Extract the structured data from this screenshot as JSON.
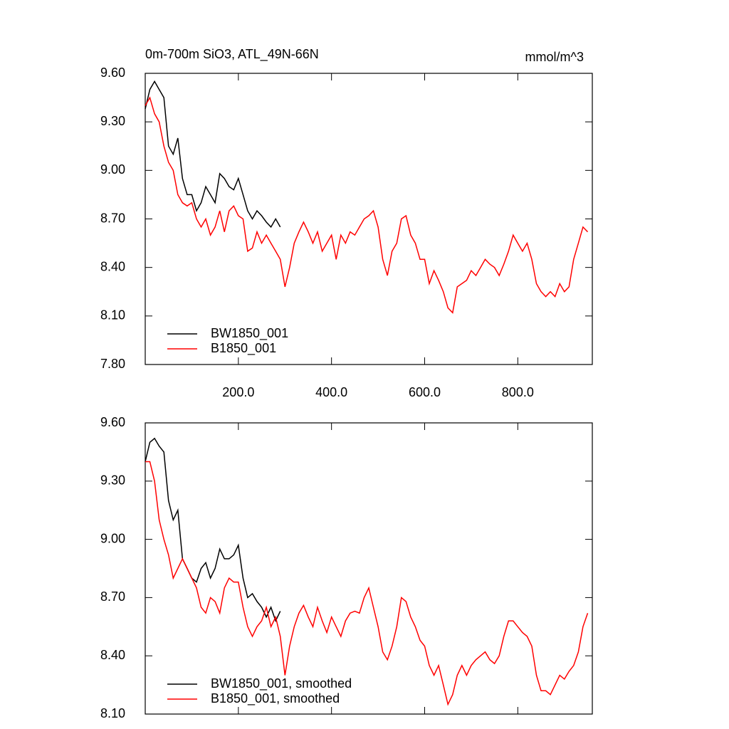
{
  "chart_data": [
    {
      "type": "line",
      "title": "0m-700m SiO3, ATL_49N-66N",
      "units": "mmol/m^3",
      "xlim": [
        0,
        960
      ],
      "ylim": [
        7.8,
        9.6
      ],
      "xticks": [
        {
          "value": 200,
          "label": "200.0"
        },
        {
          "value": 400,
          "label": "400.0"
        },
        {
          "value": 600,
          "label": "600.0"
        },
        {
          "value": 800,
          "label": "800.0"
        }
      ],
      "yticks": [
        {
          "value": 7.8,
          "label": "7.80"
        },
        {
          "value": 8.1,
          "label": "8.10"
        },
        {
          "value": 8.4,
          "label": "8.40"
        },
        {
          "value": 8.7,
          "label": "8.70"
        },
        {
          "value": 9.0,
          "label": "9.00"
        },
        {
          "value": 9.3,
          "label": "9.30"
        },
        {
          "value": 9.6,
          "label": "9.60"
        }
      ],
      "series": [
        {
          "name": "BW1850_001",
          "color": "#000000",
          "x": [
            0,
            10,
            20,
            30,
            40,
            50,
            60,
            70,
            80,
            90,
            100,
            110,
            120,
            130,
            140,
            150,
            160,
            170,
            180,
            190,
            200,
            210,
            220,
            230,
            240,
            250,
            260,
            270,
            280,
            290
          ],
          "values": [
            9.38,
            9.5,
            9.55,
            9.5,
            9.45,
            9.15,
            9.1,
            9.2,
            8.95,
            8.85,
            8.85,
            8.75,
            8.8,
            8.9,
            8.85,
            8.8,
            8.98,
            8.95,
            8.9,
            8.88,
            8.95,
            8.85,
            8.75,
            8.7,
            8.75,
            8.72,
            8.68,
            8.65,
            8.7,
            8.65
          ]
        },
        {
          "name": "B1850_001",
          "color": "#ff0000",
          "x": [
            0,
            10,
            20,
            30,
            40,
            50,
            60,
            70,
            80,
            90,
            100,
            110,
            120,
            130,
            140,
            150,
            160,
            170,
            180,
            190,
            200,
            210,
            220,
            230,
            240,
            250,
            260,
            270,
            280,
            290,
            300,
            310,
            320,
            330,
            340,
            350,
            360,
            370,
            380,
            390,
            400,
            410,
            420,
            430,
            440,
            450,
            460,
            470,
            480,
            490,
            500,
            510,
            520,
            530,
            540,
            550,
            560,
            570,
            580,
            590,
            600,
            610,
            620,
            630,
            640,
            650,
            660,
            670,
            680,
            690,
            700,
            710,
            720,
            730,
            740,
            750,
            760,
            770,
            780,
            790,
            800,
            810,
            820,
            830,
            840,
            850,
            860,
            870,
            880,
            890,
            900,
            910,
            920,
            930,
            940,
            950
          ],
          "values": [
            9.4,
            9.45,
            9.35,
            9.3,
            9.15,
            9.05,
            9.0,
            8.85,
            8.8,
            8.78,
            8.8,
            8.7,
            8.65,
            8.7,
            8.6,
            8.65,
            8.75,
            8.62,
            8.75,
            8.78,
            8.72,
            8.7,
            8.5,
            8.52,
            8.62,
            8.55,
            8.6,
            8.55,
            8.5,
            8.45,
            8.28,
            8.4,
            8.55,
            8.62,
            8.68,
            8.62,
            8.55,
            8.62,
            8.5,
            8.55,
            8.6,
            8.45,
            8.6,
            8.55,
            8.62,
            8.6,
            8.65,
            8.7,
            8.72,
            8.75,
            8.65,
            8.45,
            8.35,
            8.5,
            8.55,
            8.7,
            8.72,
            8.6,
            8.55,
            8.45,
            8.45,
            8.3,
            8.38,
            8.32,
            8.25,
            8.15,
            8.12,
            8.28,
            8.3,
            8.32,
            8.38,
            8.35,
            8.4,
            8.45,
            8.42,
            8.4,
            8.35,
            8.42,
            8.5,
            8.6,
            8.55,
            8.5,
            8.55,
            8.45,
            8.3,
            8.25,
            8.22,
            8.25,
            8.22,
            8.3,
            8.25,
            8.28,
            8.45,
            8.55,
            8.65,
            8.62
          ]
        }
      ]
    },
    {
      "type": "line",
      "xlim": [
        0,
        960
      ],
      "ylim": [
        8.1,
        9.6
      ],
      "xticks": [
        200,
        400,
        600,
        800
      ],
      "yticks": [
        {
          "value": 8.1,
          "label": "8.10"
        },
        {
          "value": 8.4,
          "label": "8.40"
        },
        {
          "value": 8.7,
          "label": "8.70"
        },
        {
          "value": 9.0,
          "label": "9.00"
        },
        {
          "value": 9.3,
          "label": "9.30"
        },
        {
          "value": 9.6,
          "label": "9.60"
        }
      ],
      "series": [
        {
          "name": "BW1850_001, smoothed",
          "color": "#000000",
          "x": [
            0,
            10,
            20,
            30,
            40,
            50,
            60,
            70,
            80,
            90,
            100,
            110,
            120,
            130,
            140,
            150,
            160,
            170,
            180,
            190,
            200,
            210,
            220,
            230,
            240,
            250,
            260,
            270,
            280,
            290
          ],
          "values": [
            9.4,
            9.5,
            9.52,
            9.48,
            9.45,
            9.2,
            9.1,
            9.15,
            8.9,
            8.85,
            8.8,
            8.78,
            8.85,
            8.88,
            8.8,
            8.85,
            8.95,
            8.9,
            8.9,
            8.92,
            8.97,
            8.8,
            8.7,
            8.72,
            8.68,
            8.65,
            8.6,
            8.65,
            8.58,
            8.63
          ]
        },
        {
          "name": "B1850_001, smoothed",
          "color": "#ff0000",
          "x": [
            0,
            10,
            20,
            30,
            40,
            50,
            60,
            70,
            80,
            90,
            100,
            110,
            120,
            130,
            140,
            150,
            160,
            170,
            180,
            190,
            200,
            210,
            220,
            230,
            240,
            250,
            260,
            270,
            280,
            290,
            300,
            310,
            320,
            330,
            340,
            350,
            360,
            370,
            380,
            390,
            400,
            410,
            420,
            430,
            440,
            450,
            460,
            470,
            480,
            490,
            500,
            510,
            520,
            530,
            540,
            550,
            560,
            570,
            580,
            590,
            600,
            610,
            620,
            630,
            640,
            650,
            660,
            670,
            680,
            690,
            700,
            710,
            720,
            730,
            740,
            750,
            760,
            770,
            780,
            790,
            800,
            810,
            820,
            830,
            840,
            850,
            860,
            870,
            880,
            890,
            900,
            910,
            920,
            930,
            940,
            950
          ],
          "values": [
            9.4,
            9.4,
            9.3,
            9.1,
            9.0,
            8.92,
            8.8,
            8.85,
            8.9,
            8.85,
            8.8,
            8.75,
            8.65,
            8.62,
            8.7,
            8.68,
            8.62,
            8.75,
            8.8,
            8.78,
            8.78,
            8.65,
            8.55,
            8.5,
            8.55,
            8.58,
            8.65,
            8.55,
            8.6,
            8.5,
            8.3,
            8.45,
            8.55,
            8.62,
            8.66,
            8.6,
            8.55,
            8.65,
            8.58,
            8.52,
            8.6,
            8.55,
            8.5,
            8.58,
            8.62,
            8.63,
            8.62,
            8.7,
            8.75,
            8.65,
            8.55,
            8.42,
            8.38,
            8.45,
            8.55,
            8.7,
            8.68,
            8.6,
            8.55,
            8.48,
            8.45,
            8.35,
            8.3,
            8.35,
            8.25,
            8.15,
            8.2,
            8.3,
            8.35,
            8.3,
            8.35,
            8.38,
            8.4,
            8.42,
            8.38,
            8.36,
            8.4,
            8.5,
            8.58,
            8.58,
            8.55,
            8.52,
            8.5,
            8.45,
            8.3,
            8.22,
            8.22,
            8.2,
            8.25,
            8.3,
            8.28,
            8.32,
            8.35,
            8.42,
            8.55,
            8.62
          ]
        }
      ]
    }
  ]
}
